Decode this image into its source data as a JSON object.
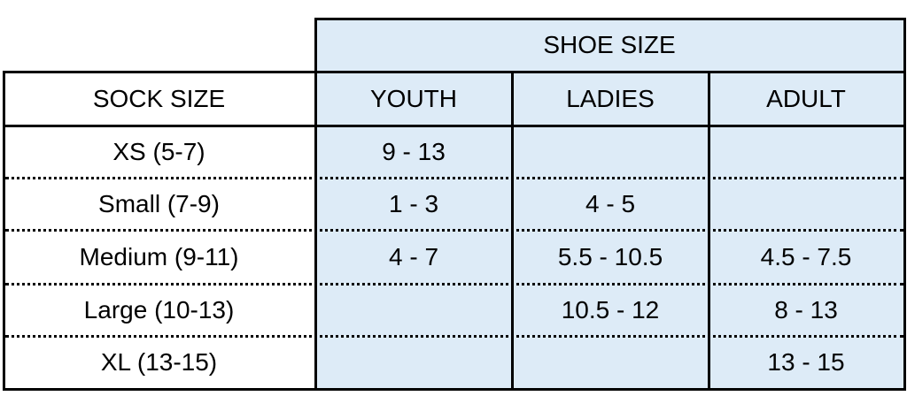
{
  "table": {
    "group_header": "SHOE SIZE",
    "columns": [
      "SOCK SIZE",
      "YOUTH",
      "LADIES",
      "ADULT"
    ],
    "rows": [
      [
        "XS (5-7)",
        "9 - 13",
        "",
        ""
      ],
      [
        "Small (7-9)",
        "1 - 3",
        "4 - 5",
        ""
      ],
      [
        "Medium (9-11)",
        "4 - 7",
        "5.5 - 10.5",
        "4.5 - 7.5"
      ],
      [
        "Large (10-13)",
        "",
        "10.5 - 12",
        "8 - 13"
      ],
      [
        "XL (13-15)",
        "",
        "",
        "13 - 15"
      ]
    ]
  },
  "colors": {
    "shoe_size_fill": "#ddebf7",
    "border": "#000000"
  }
}
